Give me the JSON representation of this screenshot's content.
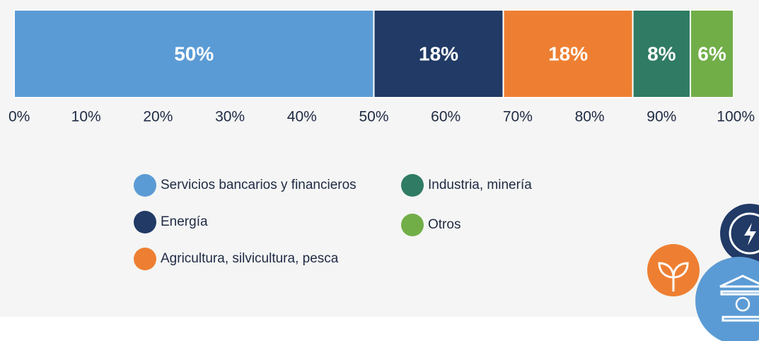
{
  "chart_data": {
    "type": "bar",
    "orientation": "horizontal",
    "stacked": true,
    "series": [
      {
        "name": "Servicios bancarios y financieros",
        "color": "#5b9bd5",
        "values": [
          50
        ],
        "value_labels": [
          "50%"
        ]
      },
      {
        "name": "Energía",
        "color": "#213a66",
        "values": [
          18
        ],
        "value_labels": [
          "18%"
        ]
      },
      {
        "name": "Agricultura, silvicultura, pesca",
        "color": "#ee7f32",
        "values": [
          18
        ],
        "value_labels": [
          "18%"
        ]
      },
      {
        "name": "Industria, minería",
        "color": "#2f7b63",
        "values": [
          8
        ],
        "value_labels": [
          "8%"
        ]
      },
      {
        "name": "Otros",
        "color": "#71ae48",
        "values": [
          6
        ],
        "value_labels": [
          "6%"
        ]
      }
    ],
    "xlim": [
      0,
      100
    ],
    "xticks": [
      {
        "value": 0,
        "label": "0%"
      },
      {
        "value": 10,
        "label": "10%"
      },
      {
        "value": 20,
        "label": "20%"
      },
      {
        "value": 30,
        "label": "30%"
      },
      {
        "value": 40,
        "label": "40%"
      },
      {
        "value": 50,
        "label": "50%"
      },
      {
        "value": 60,
        "label": "60%"
      },
      {
        "value": 70,
        "label": "70%"
      },
      {
        "value": 80,
        "label": "80%"
      },
      {
        "value": 90,
        "label": "90%"
      },
      {
        "value": 100,
        "label": "100%"
      }
    ]
  }
}
